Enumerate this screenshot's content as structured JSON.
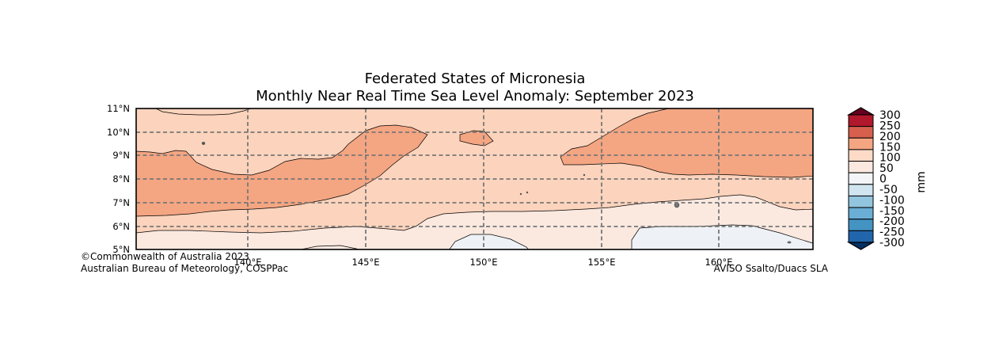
{
  "title": {
    "line1": "Federated States of Micronesia",
    "line2": "Monthly Near Real Time Sea Level Anomaly: September 2023"
  },
  "map": {
    "lon_ticks": [
      "140°E",
      "145°E",
      "150°E",
      "155°E",
      "160°E"
    ],
    "lat_ticks": [
      "11°N",
      "10°N",
      "9°N",
      "8°N",
      "7°N",
      "6°N",
      "5°N"
    ],
    "lon_range": [
      135.3,
      164.0
    ],
    "lat_range": [
      5,
      11
    ]
  },
  "colorbar": {
    "unit": "mm",
    "levels": [
      "300",
      "250",
      "200",
      "150",
      "100",
      "50",
      "0",
      "-50",
      "-100",
      "-150",
      "-200",
      "-250",
      "-300"
    ],
    "colors": [
      "#67001f",
      "#b2182b",
      "#d6604d",
      "#f4a582",
      "#fddbc7",
      "#fbe9e0",
      "#f2f4f7",
      "#d1e5f0",
      "#92c5de",
      "#6aaed6",
      "#4393c3",
      "#2166ac",
      "#053061"
    ]
  },
  "credits": {
    "left_line1": "©Commonwealth of Australia 2023",
    "left_line2": "Australian Bureau of Meteorology, COSPPac",
    "right": "AVISO Ssalto/Duacs SLA"
  }
}
